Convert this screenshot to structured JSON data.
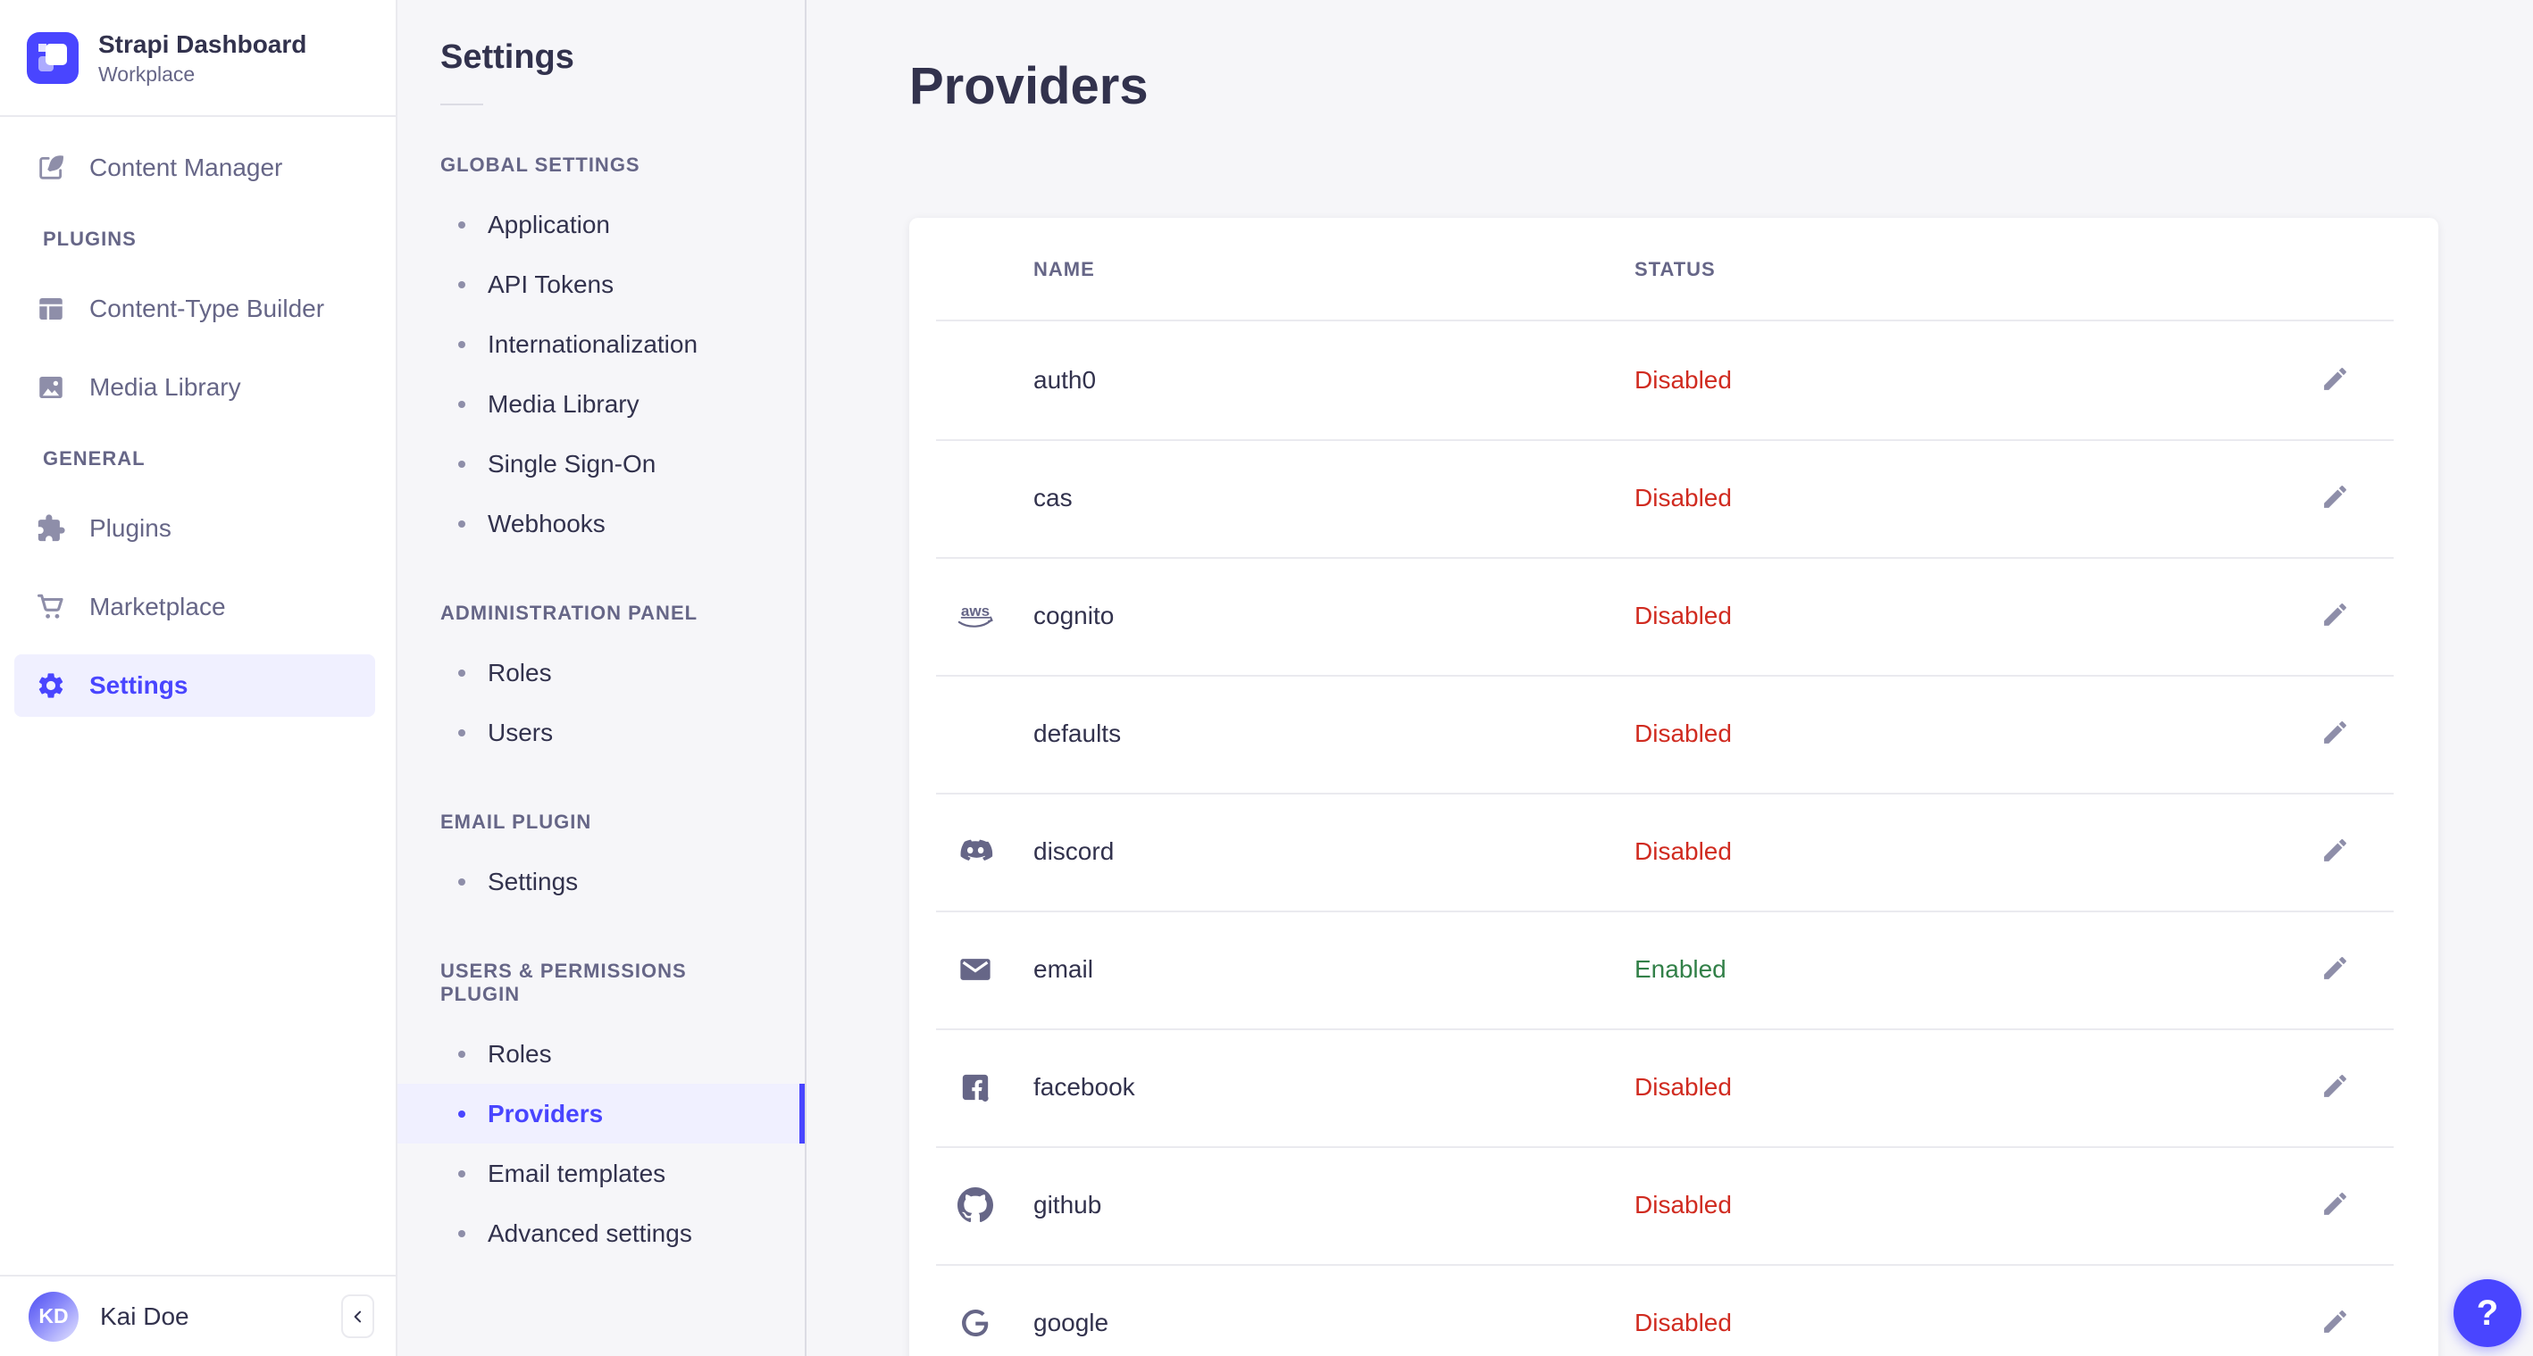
{
  "colors": {
    "accent": "#4945ff",
    "accent_bg": "#f0f0ff",
    "danger": "#d02b20",
    "success": "#328048"
  },
  "brand": {
    "title": "Strapi Dashboard",
    "subtitle": "Workplace",
    "logo_icon": "strapi-logo"
  },
  "main_nav": {
    "top_items": [
      {
        "label": "Content Manager",
        "icon": "feather"
      }
    ],
    "sections": [
      {
        "label": "PLUGINS",
        "items": [
          {
            "label": "Content-Type Builder",
            "icon": "layout"
          },
          {
            "label": "Media Library",
            "icon": "image"
          }
        ]
      },
      {
        "label": "GENERAL",
        "items": [
          {
            "label": "Plugins",
            "icon": "puzzle"
          },
          {
            "label": "Marketplace",
            "icon": "cart"
          },
          {
            "label": "Settings",
            "icon": "gear",
            "active": true
          }
        ]
      }
    ],
    "user": {
      "initials": "KD",
      "name": "Kai Doe"
    },
    "collapse_icon": "chevron-left"
  },
  "sub_nav": {
    "title": "Settings",
    "sections": [
      {
        "label": "GLOBAL SETTINGS",
        "items": [
          "Application",
          "API Tokens",
          "Internationalization",
          "Media Library",
          "Single Sign-On",
          "Webhooks"
        ]
      },
      {
        "label": "ADMINISTRATION PANEL",
        "items": [
          "Roles",
          "Users"
        ]
      },
      {
        "label": "EMAIL PLUGIN",
        "items": [
          "Settings"
        ]
      },
      {
        "label": "USERS & PERMISSIONS PLUGIN",
        "items": [
          "Roles",
          "Providers",
          "Email templates",
          "Advanced settings"
        ],
        "active_item": "Providers"
      }
    ]
  },
  "page": {
    "title": "Providers"
  },
  "table": {
    "headers": [
      "NAME",
      "STATUS"
    ],
    "rows": [
      {
        "name": "auth0",
        "icon": null,
        "status": "Disabled",
        "enabled": false
      },
      {
        "name": "cas",
        "icon": null,
        "status": "Disabled",
        "enabled": false
      },
      {
        "name": "cognito",
        "icon": "aws",
        "status": "Disabled",
        "enabled": false
      },
      {
        "name": "defaults",
        "icon": null,
        "status": "Disabled",
        "enabled": false
      },
      {
        "name": "discord",
        "icon": "discord",
        "status": "Disabled",
        "enabled": false
      },
      {
        "name": "email",
        "icon": "envelope",
        "status": "Enabled",
        "enabled": true
      },
      {
        "name": "facebook",
        "icon": "facebook",
        "status": "Disabled",
        "enabled": false
      },
      {
        "name": "github",
        "icon": "github",
        "status": "Disabled",
        "enabled": false
      },
      {
        "name": "google",
        "icon": "google",
        "status": "Disabled",
        "enabled": false
      }
    ]
  },
  "help": {
    "label": "?"
  }
}
